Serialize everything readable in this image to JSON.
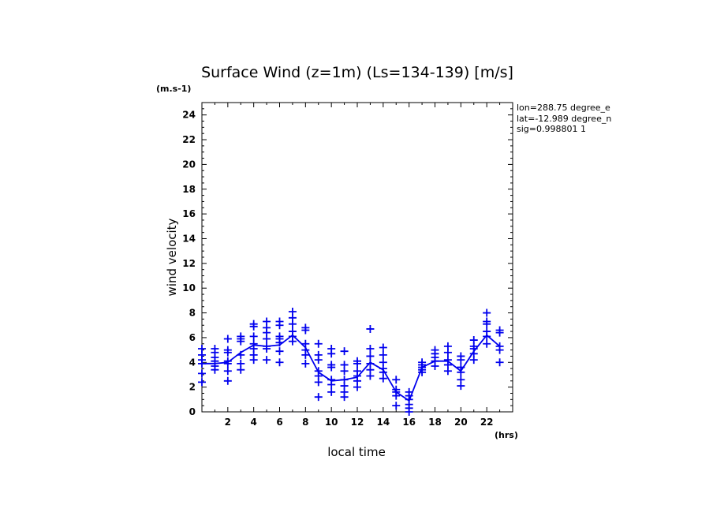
{
  "chart_data": {
    "type": "scatter",
    "title": "Surface Wind (z=1m) (Ls=134-139) [m/s]",
    "y_unit": "(m.s-1)",
    "x_unit": "(hrs)",
    "xlabel": "local time",
    "ylabel": "wind velocity",
    "xlim": [
      0,
      24
    ],
    "ylim": [
      0,
      25
    ],
    "x_ticks": [
      2,
      4,
      6,
      8,
      10,
      12,
      14,
      16,
      18,
      20,
      22
    ],
    "y_ticks": [
      0,
      2,
      4,
      6,
      8,
      10,
      12,
      14,
      16,
      18,
      20,
      22,
      24
    ],
    "annotations": [
      "lon=288.75 degree_e",
      "lat=-12.989 degree_n",
      "sig=0.998801 1"
    ],
    "color": "#0000ee",
    "samples": [
      {
        "x": 0.0,
        "values": [
          2.4,
          3.1,
          3.9,
          4.2,
          4.6,
          5.1
        ]
      },
      {
        "x": 1.0,
        "values": [
          3.4,
          3.7,
          4.1,
          4.4,
          4.8,
          5.1
        ]
      },
      {
        "x": 2.0,
        "values": [
          2.5,
          3.3,
          3.9,
          4.1,
          4.8,
          5.0,
          5.9
        ]
      },
      {
        "x": 3.0,
        "values": [
          3.4,
          3.9,
          4.6,
          5.7,
          5.9,
          6.1
        ]
      },
      {
        "x": 4.0,
        "values": [
          4.2,
          4.6,
          5.1,
          5.5,
          6.1,
          6.9,
          7.1
        ]
      },
      {
        "x": 5.0,
        "values": [
          4.2,
          5.1,
          5.3,
          5.9,
          6.4,
          6.8,
          7.3
        ]
      },
      {
        "x": 6.0,
        "values": [
          4.0,
          4.9,
          5.6,
          5.9,
          6.1,
          7.0,
          7.3
        ]
      },
      {
        "x": 7.0,
        "values": [
          5.7,
          6.1,
          6.5,
          7.1,
          7.6,
          8.1
        ]
      },
      {
        "x": 8.0,
        "values": [
          3.9,
          4.6,
          5.0,
          5.5,
          6.6,
          6.8
        ]
      },
      {
        "x": 9.0,
        "values": [
          1.2,
          2.4,
          2.9,
          3.3,
          4.2,
          4.6,
          5.5
        ]
      },
      {
        "x": 10.0,
        "values": [
          1.6,
          2.2,
          2.6,
          3.6,
          3.8,
          4.7,
          5.1
        ]
      },
      {
        "x": 11.0,
        "values": [
          1.2,
          1.6,
          2.1,
          2.6,
          3.3,
          3.8,
          4.9
        ]
      },
      {
        "x": 12.0,
        "values": [
          2.0,
          2.5,
          2.9,
          3.3,
          3.9,
          4.1
        ]
      },
      {
        "x": 13.0,
        "values": [
          2.9,
          3.4,
          3.9,
          4.5,
          5.1,
          6.7
        ]
      },
      {
        "x": 14.0,
        "values": [
          2.7,
          3.2,
          3.5,
          4.0,
          4.6,
          5.2
        ]
      },
      {
        "x": 15.0,
        "values": [
          0.5,
          1.3,
          1.6,
          1.8,
          2.6
        ]
      },
      {
        "x": 16.0,
        "values": [
          0.0,
          0.3,
          0.6,
          1.0,
          1.3,
          1.6
        ]
      },
      {
        "x": 17.0,
        "values": [
          3.2,
          3.4,
          3.6,
          3.8,
          4.0
        ]
      },
      {
        "x": 18.0,
        "values": [
          3.7,
          4.1,
          4.4,
          4.7,
          5.0
        ]
      },
      {
        "x": 19.0,
        "values": [
          3.3,
          3.8,
          4.2,
          4.8,
          5.3
        ]
      },
      {
        "x": 20.0,
        "values": [
          2.1,
          2.6,
          3.2,
          3.6,
          4.2,
          4.5
        ]
      },
      {
        "x": 21.0,
        "values": [
          4.2,
          4.7,
          5.1,
          5.3,
          5.8
        ]
      },
      {
        "x": 22.0,
        "values": [
          5.5,
          6.1,
          6.5,
          7.1,
          7.3,
          8.0
        ]
      },
      {
        "x": 23.0,
        "values": [
          4.0,
          5.0,
          5.3,
          6.4,
          6.6
        ]
      }
    ],
    "mean_line": {
      "x": [
        0,
        1,
        2,
        3,
        4,
        5,
        6,
        7,
        8,
        9,
        10,
        11,
        12,
        13,
        14,
        15,
        16,
        17,
        18,
        19,
        20,
        21,
        22,
        23
      ],
      "values": [
        3.9,
        3.9,
        4.0,
        4.8,
        5.4,
        5.3,
        5.4,
        6.2,
        5.2,
        3.2,
        2.5,
        2.6,
        2.8,
        4.0,
        3.4,
        1.6,
        0.9,
        3.6,
        4.1,
        4.1,
        3.3,
        4.9,
        6.2,
        5.3
      ]
    }
  }
}
